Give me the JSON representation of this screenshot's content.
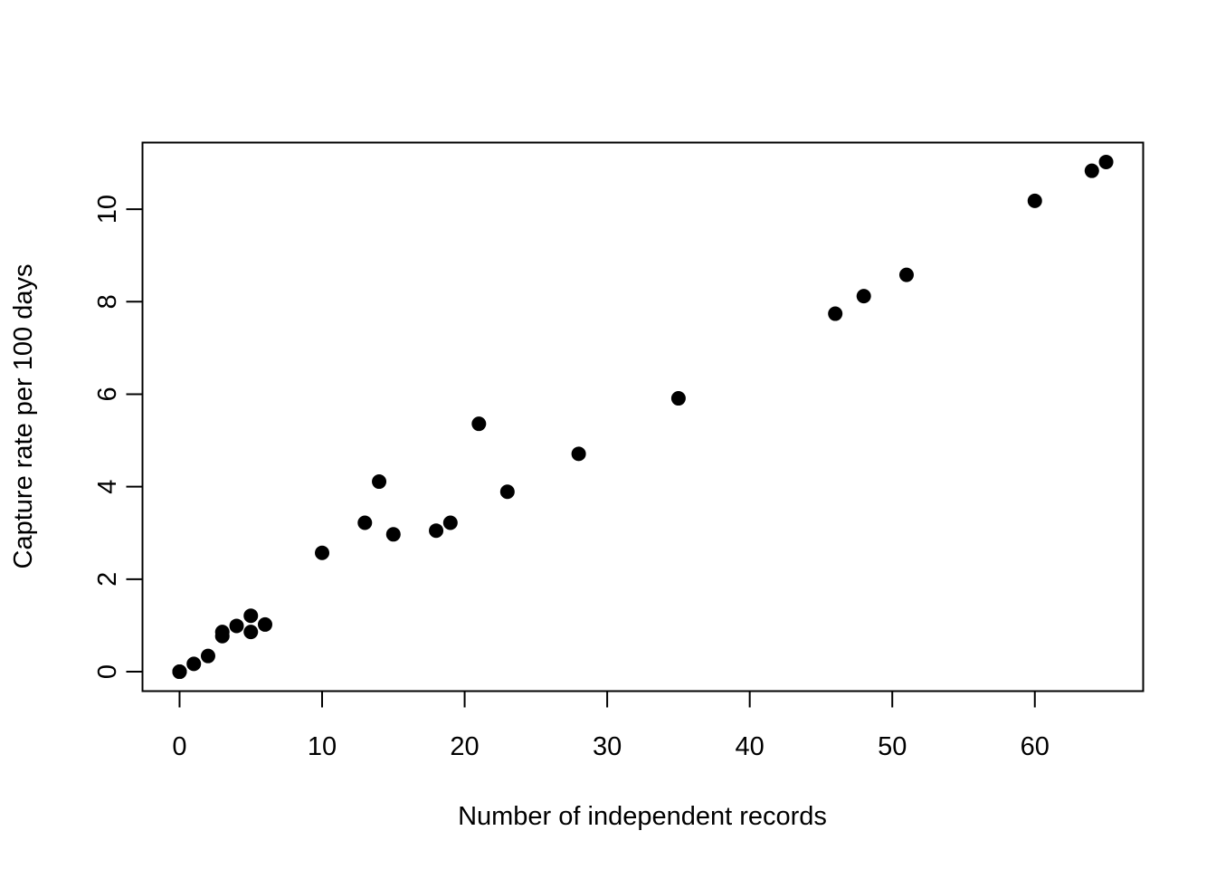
{
  "chart_data": {
    "type": "scatter",
    "title": "",
    "xlabel": "Number of independent records",
    "ylabel": "Capture rate per 100 days",
    "xlim": [
      -2.6,
      67.6
    ],
    "ylim": [
      -0.42,
      11.44
    ],
    "x_ticks": [
      0,
      10,
      20,
      30,
      40,
      50,
      60
    ],
    "y_ticks": [
      0,
      2,
      4,
      6,
      8,
      10
    ],
    "x_tick_labels": [
      "0",
      "10",
      "20",
      "30",
      "40",
      "50",
      "60"
    ],
    "y_tick_labels": [
      "0",
      "2",
      "4",
      "6",
      "8",
      "10"
    ],
    "grid": false,
    "legend": "none",
    "marker_color": "#000000",
    "points": [
      {
        "x": 0,
        "y": 0.0
      },
      {
        "x": 0,
        "y": 0.0
      },
      {
        "x": 0,
        "y": 0.0
      },
      {
        "x": 1,
        "y": 0.17
      },
      {
        "x": 2,
        "y": 0.34
      },
      {
        "x": 3,
        "y": 0.77
      },
      {
        "x": 3,
        "y": 0.86
      },
      {
        "x": 4,
        "y": 0.99
      },
      {
        "x": 5,
        "y": 0.86
      },
      {
        "x": 5,
        "y": 1.21
      },
      {
        "x": 6,
        "y": 1.02
      },
      {
        "x": 10,
        "y": 2.57
      },
      {
        "x": 13,
        "y": 3.22
      },
      {
        "x": 14,
        "y": 4.11
      },
      {
        "x": 15,
        "y": 2.97
      },
      {
        "x": 18,
        "y": 3.05
      },
      {
        "x": 19,
        "y": 3.22
      },
      {
        "x": 21,
        "y": 5.36
      },
      {
        "x": 23,
        "y": 3.89
      },
      {
        "x": 28,
        "y": 4.71
      },
      {
        "x": 35,
        "y": 5.91
      },
      {
        "x": 46,
        "y": 7.74
      },
      {
        "x": 48,
        "y": 8.12
      },
      {
        "x": 51,
        "y": 8.58
      },
      {
        "x": 60,
        "y": 10.18
      },
      {
        "x": 64,
        "y": 10.83
      },
      {
        "x": 65,
        "y": 11.02
      }
    ]
  }
}
